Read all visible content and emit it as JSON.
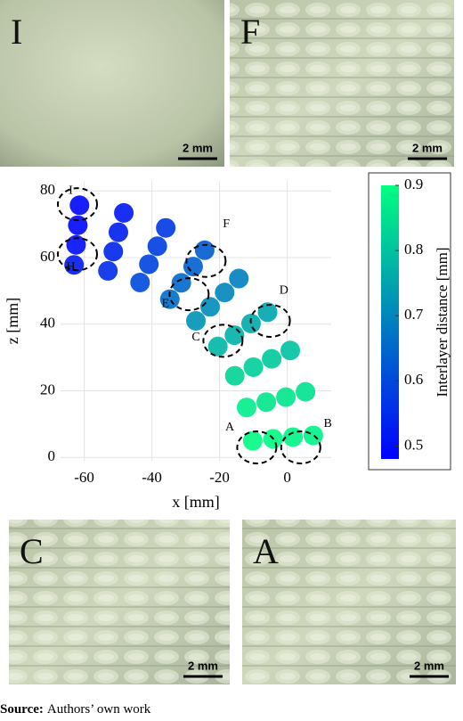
{
  "panels": [
    {
      "letter": "I",
      "scale": "2 mm"
    },
    {
      "letter": "F",
      "scale": "2 mm"
    },
    {
      "letter": "C",
      "scale": "2 mm"
    },
    {
      "letter": "A",
      "scale": "2 mm"
    }
  ],
  "chart_data": {
    "type": "scatter",
    "xlabel": "x [mm]",
    "ylabel": "z [mm]",
    "xlim": [
      -67,
      13
    ],
    "xticks": [
      -60,
      -40,
      -20,
      0
    ],
    "ylim": [
      -1,
      83
    ],
    "yticks": [
      0,
      20,
      40,
      60,
      80
    ],
    "grid": true,
    "x": [
      -10.2,
      -12.0,
      -15.5,
      -20.5,
      -27.0,
      -34.7,
      -43.5,
      -53.0,
      -63.0,
      -4.2,
      -6.2,
      -10.0,
      -15.6,
      -22.8,
      -31.3,
      -40.9,
      -51.4,
      -62.4,
      1.7,
      -0.4,
      -4.6,
      -10.7,
      -18.5,
      -27.8,
      -38.4,
      -49.9,
      -61.9,
      7.7,
      5.4,
      0.9,
      -5.8,
      -14.3,
      -24.4,
      -35.9,
      -48.3,
      -61.4
    ],
    "y": [
      5.0,
      15.0,
      24.5,
      33.3,
      41.0,
      47.5,
      52.5,
      56.0,
      57.8,
      5.6,
      16.6,
      27.1,
      36.7,
      45.2,
      52.4,
      58.0,
      61.8,
      63.8,
      6.1,
      18.1,
      29.6,
      40.2,
      49.5,
      57.3,
      63.4,
      67.6,
      69.7,
      6.6,
      19.7,
      32.1,
      43.6,
      53.7,
      62.2,
      68.9,
      73.4,
      75.7
    ],
    "values": [
      0.89,
      0.87,
      0.83,
      0.78,
      0.72,
      0.66,
      0.6,
      0.55,
      0.52,
      0.89,
      0.86,
      0.82,
      0.77,
      0.71,
      0.65,
      0.59,
      0.54,
      0.5,
      0.88,
      0.86,
      0.81,
      0.76,
      0.7,
      0.64,
      0.58,
      0.53,
      0.49,
      0.88,
      0.85,
      0.8,
      0.75,
      0.69,
      0.63,
      0.57,
      0.52,
      0.49
    ],
    "colorbar": {
      "label": "Interlayer distance [mm]",
      "lim": [
        0.48,
        0.9
      ],
      "ticks": [
        0.5,
        0.6,
        0.7,
        0.8,
        0.9
      ],
      "colors": [
        "#0000ff",
        "#00ff80"
      ]
    },
    "annotations": [
      "I",
      "H",
      "F",
      "E",
      "D",
      "C",
      "A",
      "B"
    ]
  },
  "source": {
    "label": "Source:",
    "text": "Authors’ own work"
  }
}
